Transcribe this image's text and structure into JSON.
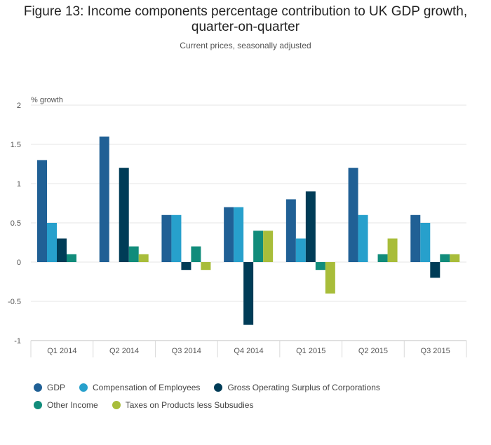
{
  "title_line1": "Figure 13: Income components percentage contribution to UK GDP growth,",
  "title_line2": "quarter-on-quarter",
  "subtitle": "Current prices, seasonally adjusted",
  "chart_data": {
    "type": "bar",
    "title": "Figure 13: Income components percentage contribution to UK GDP growth, quarter-on-quarter",
    "subtitle": "Current prices, seasonally adjusted",
    "ylabel": "% growth",
    "xlabel": "",
    "ylim": [
      -1,
      2
    ],
    "yticks": [
      2,
      1.5,
      1,
      0.5,
      0,
      -0.5,
      -1
    ],
    "ytick_labels": [
      "2",
      "1.5",
      "1",
      "0.5",
      "0",
      "-0.5",
      "-1"
    ],
    "grid": true,
    "legend_position": "bottom",
    "categories": [
      "Q1 2014",
      "Q2 2014",
      "Q3 2014",
      "Q4 2014",
      "Q1 2015",
      "Q2 2015",
      "Q3 2015"
    ],
    "series": [
      {
        "name": "GDP",
        "color": "#206095",
        "values": [
          1.3,
          1.6,
          0.6,
          0.7,
          0.8,
          1.2,
          0.6
        ]
      },
      {
        "name": "Compensation of Employees",
        "color": "#27a0cc",
        "values": [
          0.5,
          0.0,
          0.6,
          0.7,
          0.3,
          0.6,
          0.5
        ]
      },
      {
        "name": "Gross Operating Surplus of Corporations",
        "color": "#003c57",
        "values": [
          0.3,
          1.2,
          -0.1,
          -0.8,
          0.9,
          0.0,
          -0.2
        ]
      },
      {
        "name": "Other Income",
        "color": "#118c7b",
        "values": [
          0.1,
          0.2,
          0.2,
          0.4,
          -0.1,
          0.1,
          0.1
        ]
      },
      {
        "name": "Taxes on Products less Subsudies",
        "color": "#a8bd3a",
        "values": [
          0.0,
          0.1,
          -0.1,
          0.4,
          -0.4,
          0.3,
          0.1
        ]
      }
    ]
  }
}
